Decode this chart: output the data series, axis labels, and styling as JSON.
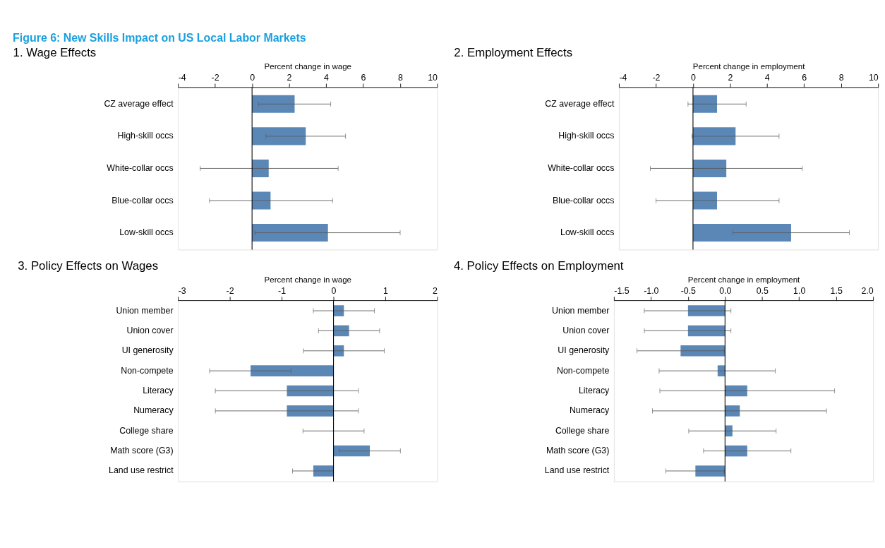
{
  "chart_data": [
    {
      "type": "bar",
      "orientation": "horizontal",
      "title": "1.  Wage Effects",
      "xlabel": "Percent change in wage",
      "annotations": [
        "Figure 6: New Skills Impact on US Local Labor Markets"
      ],
      "categories": [
        "CZ average effect",
        "High-skill occs",
        "White-collar occs",
        "Blue-collar occs",
        "Low-skill occs"
      ],
      "values": [
        2.3,
        2.9,
        0.9,
        1.0,
        4.1
      ],
      "color": "#5b87b7",
      "errors": [
        [
          0.35,
          4.25
        ],
        [
          0.75,
          5.05
        ],
        [
          -2.8,
          4.65
        ],
        [
          -2.3,
          4.35
        ],
        [
          0.15,
          8.0
        ]
      ],
      "xlim": [
        -4,
        10
      ],
      "xticks": [
        -4,
        -2,
        0,
        2,
        4,
        6,
        8,
        10
      ],
      "grid": false,
      "ref_lines": [
        {
          "axis": "x",
          "value": 0
        }
      ]
    },
    {
      "type": "bar",
      "orientation": "horizontal",
      "title": "2.  Employment Effects",
      "xlabel": "Percent change in employment",
      "categories": [
        "CZ average effect",
        "High-skill occs",
        "White-collar occs",
        "Blue-collar occs",
        "Low-skill occs"
      ],
      "values": [
        1.3,
        2.3,
        1.8,
        1.3,
        5.3
      ],
      "color": "#5b87b7",
      "errors": [
        [
          -0.27,
          2.87
        ],
        [
          -0.05,
          4.65
        ],
        [
          -2.3,
          5.9
        ],
        [
          -2.0,
          4.65
        ],
        [
          2.15,
          8.45
        ]
      ],
      "xlim": [
        -4,
        10
      ],
      "xticks": [
        -4,
        -2,
        0,
        2,
        4,
        6,
        8,
        10
      ],
      "grid": false,
      "ref_lines": [
        {
          "axis": "x",
          "value": 0
        }
      ]
    },
    {
      "type": "bar",
      "orientation": "horizontal",
      "title": "3.  Policy Effects on Wages",
      "xlabel": "Percent change in wage",
      "categories": [
        "Union member",
        "Union cover",
        "UI generosity",
        "Non-compete",
        "Literacy",
        "Numeracy",
        "College share",
        "Math score (G3)",
        "Land use restrict"
      ],
      "values": [
        0.2,
        0.3,
        0.2,
        -1.6,
        -0.9,
        -0.9,
        0.0,
        0.7,
        -0.39
      ],
      "color": "#5b87b7",
      "errors": [
        [
          -0.39,
          0.79
        ],
        [
          -0.29,
          0.89
        ],
        [
          -0.58,
          0.98
        ],
        [
          -2.39,
          -0.82
        ],
        [
          -2.28,
          0.48
        ],
        [
          -2.28,
          0.48
        ],
        [
          -0.59,
          0.59
        ],
        [
          0.11,
          1.29
        ],
        [
          -0.79,
          0.0
        ]
      ],
      "xlim": [
        -3,
        2
      ],
      "xticks": [
        -3,
        -2,
        -1,
        0,
        1,
        2
      ],
      "grid": false,
      "ref_lines": [
        {
          "axis": "x",
          "value": 0
        }
      ]
    },
    {
      "type": "bar",
      "orientation": "horizontal",
      "title": "4.  Policy Effects on Employment",
      "xlabel": "Percent change in employment",
      "categories": [
        "Union member",
        "Union cover",
        "UI generosity",
        "Non-compete",
        "Literacy",
        "Numeracy",
        "College share",
        "Math score (G3)",
        "Land use restrict"
      ],
      "values": [
        -0.5,
        -0.5,
        -0.6,
        -0.1,
        0.3,
        0.2,
        0.1,
        0.3,
        -0.4
      ],
      "color": "#5b87b7",
      "errors": [
        [
          -1.09,
          0.08
        ],
        [
          -1.09,
          0.08
        ],
        [
          -1.19,
          -0.01
        ],
        [
          -0.89,
          0.68
        ],
        [
          -0.88,
          1.48
        ],
        [
          -0.98,
          1.37
        ],
        [
          -0.49,
          0.69
        ],
        [
          -0.29,
          0.89
        ],
        [
          -0.8,
          -0.01
        ]
      ],
      "xlim": [
        -1.5,
        2.0
      ],
      "xticks": [
        {
          "value": -1.5,
          "label": "-1.5"
        },
        {
          "value": -1.0,
          "label": "-1.0"
        },
        {
          "value": -0.5,
          "label": "-0.5"
        },
        {
          "value": 0.0,
          "label": "0.0"
        },
        {
          "value": 0.5,
          "label": "0.5"
        },
        {
          "value": 1.0,
          "label": "1.0"
        },
        {
          "value": 1.5,
          "label": "1.5"
        },
        {
          "value": 2.0,
          "label": "2.0"
        }
      ],
      "grid": false,
      "ref_lines": [
        {
          "axis": "x",
          "value": 0
        }
      ]
    }
  ]
}
